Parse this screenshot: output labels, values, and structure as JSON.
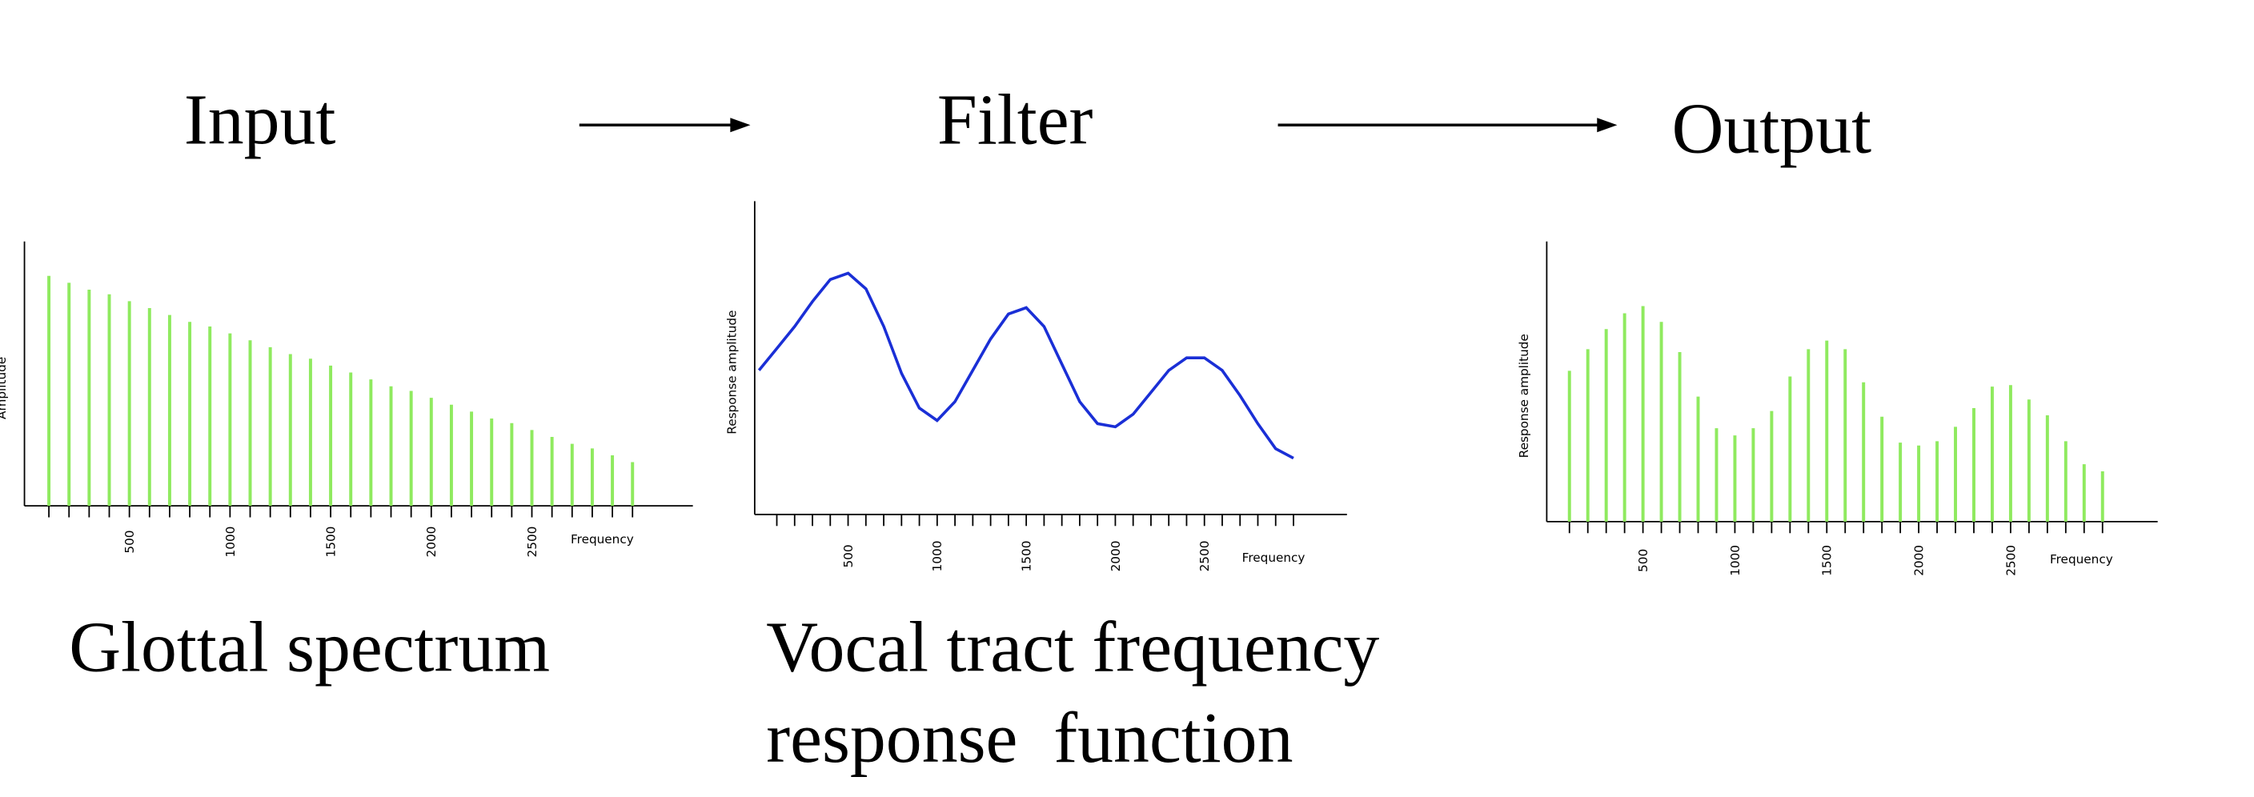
{
  "input_label": "Input",
  "filter_label": "Filter",
  "output_label": "Output",
  "glottal_caption": "Glottal spectrum",
  "filter_caption": [
    "Vocal tract frequency",
    "response  function"
  ],
  "chart_data": [
    {
      "type": "stem",
      "xlabel": "Frequency",
      "ylabel": "Amplitude",
      "color": "#8fea5f",
      "x": [
        100,
        200,
        300,
        400,
        500,
        600,
        700,
        800,
        900,
        1000,
        1100,
        1200,
        1300,
        1400,
        1500,
        1600,
        1700,
        1800,
        1900,
        2000,
        2100,
        2200,
        2300,
        2400,
        2500,
        2600,
        2700,
        2800,
        2900,
        3000
      ],
      "values": [
        100,
        97,
        94,
        92,
        89,
        86,
        83,
        80,
        78,
        75,
        72,
        69,
        66,
        64,
        61,
        58,
        55,
        52,
        50,
        47,
        44,
        41,
        38,
        36,
        33,
        30,
        27,
        25,
        22,
        19
      ],
      "xlim": [
        0,
        3300
      ],
      "ylim": [
        0,
        115
      ],
      "xticks": [
        500,
        1000,
        1500,
        2000,
        2500
      ],
      "xminorticks": [
        100,
        200,
        300,
        400,
        500,
        600,
        700,
        800,
        900,
        1000,
        1100,
        1200,
        1300,
        1400,
        1500,
        1600,
        1700,
        1800,
        1900,
        2000,
        2100,
        2200,
        2300,
        2400,
        2500,
        2600,
        2700,
        2800,
        2900,
        3000
      ]
    },
    {
      "type": "line",
      "xlabel": "Frequency",
      "ylabel": "Response amplitude",
      "color": "#1a2fd6",
      "x": [
        0,
        100,
        200,
        300,
        400,
        500,
        600,
        700,
        800,
        900,
        1000,
        1100,
        1200,
        1300,
        1400,
        1500,
        1600,
        1700,
        1800,
        1900,
        2000,
        2100,
        2200,
        2300,
        2400,
        2500,
        2600,
        2700,
        2800,
        2900,
        3000
      ],
      "values": [
        46,
        53,
        60,
        68,
        75,
        77,
        72,
        60,
        45,
        34,
        30,
        36,
        46,
        56,
        64,
        66,
        60,
        48,
        36,
        29,
        28,
        32,
        39,
        46,
        50,
        50,
        46,
        38,
        29,
        21,
        18
      ],
      "xlim": [
        0,
        3300
      ],
      "ylim": [
        0,
        100
      ],
      "xticks": [
        500,
        1000,
        1500,
        2000,
        2500
      ],
      "xminorticks": [
        100,
        200,
        300,
        400,
        500,
        600,
        700,
        800,
        900,
        1000,
        1100,
        1200,
        1300,
        1400,
        1500,
        1600,
        1700,
        1800,
        1900,
        2000,
        2100,
        2200,
        2300,
        2400,
        2500,
        2600,
        2700,
        2800,
        2900,
        3000
      ]
    },
    {
      "type": "stem",
      "xlabel": "Frequency",
      "ylabel": "Response amplitude",
      "color": "#8fea5f",
      "x": [
        100,
        200,
        300,
        400,
        500,
        600,
        700,
        800,
        900,
        1000,
        1100,
        1200,
        1300,
        1400,
        1500,
        1600,
        1700,
        1800,
        1900,
        2000,
        2100,
        2200,
        2300,
        2400,
        2500,
        2600,
        2700,
        2800,
        2900,
        3000
      ],
      "values": [
        105,
        120,
        134,
        145,
        150,
        139,
        118,
        87,
        65,
        60,
        65,
        77,
        101,
        120,
        126,
        120,
        97,
        73,
        55,
        53,
        56,
        66,
        79,
        94,
        95,
        85,
        74,
        56,
        40,
        35
      ],
      "xlim": [
        0,
        3300
      ],
      "ylim": [
        0,
        195
      ],
      "xticks": [
        500,
        1000,
        1500,
        2000,
        2500
      ],
      "xminorticks": [
        100,
        200,
        300,
        400,
        500,
        600,
        700,
        800,
        900,
        1000,
        1100,
        1200,
        1300,
        1400,
        1500,
        1600,
        1700,
        1800,
        1900,
        2000,
        2100,
        2200,
        2300,
        2400,
        2500,
        2600,
        2700,
        2800,
        2900,
        3000
      ]
    }
  ]
}
